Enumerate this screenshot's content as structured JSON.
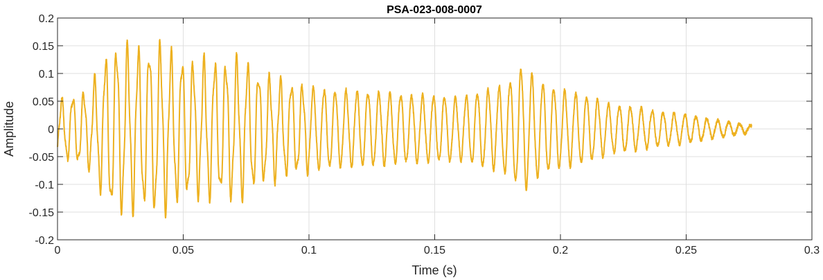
{
  "chart_data": {
    "type": "line",
    "title": "PSA-023-008-0007",
    "xlabel": "Time (s)",
    "ylabel": "Amplitude",
    "xlim": [
      0,
      0.3
    ],
    "ylim": [
      -0.2,
      0.2
    ],
    "grid": true,
    "x_ticks": [
      0,
      0.05,
      0.1,
      0.15,
      0.2,
      0.25,
      0.3
    ],
    "x_tick_labels": [
      "0",
      "0.05",
      "0.1",
      "0.15",
      "0.2",
      "0.25",
      "0.3"
    ],
    "y_ticks": [
      0.2,
      0.15,
      0.1,
      0.05,
      0,
      -0.05,
      -0.1,
      -0.15,
      -0.2
    ],
    "y_tick_labels": [
      "0.2",
      "0.15",
      "0.1",
      "0.05",
      "0",
      "-0.05",
      "-0.1",
      "-0.15",
      "-0.2"
    ],
    "series": [
      {
        "color": "#EDB120",
        "x_range": [
          0,
          0.276
        ],
        "envelope_t": [
          0,
          0.003,
          0.012,
          0.018,
          0.021,
          0.025,
          0.03,
          0.035,
          0.04,
          0.045,
          0.05,
          0.055,
          0.06,
          0.065,
          0.07,
          0.075,
          0.08,
          0.09,
          0.1,
          0.11,
          0.12,
          0.13,
          0.14,
          0.15,
          0.16,
          0.17,
          0.175,
          0.18,
          0.185,
          0.19,
          0.195,
          0.2,
          0.21,
          0.22,
          0.23,
          0.24,
          0.25,
          0.26,
          0.27,
          0.276
        ],
        "envelope_a": [
          0.055,
          0.06,
          0.075,
          0.13,
          0.16,
          0.165,
          0.16,
          0.155,
          0.17,
          0.15,
          0.14,
          0.13,
          0.14,
          0.13,
          0.14,
          0.13,
          0.11,
          0.095,
          0.085,
          0.08,
          0.078,
          0.075,
          0.07,
          0.068,
          0.065,
          0.08,
          0.085,
          0.1,
          0.13,
          0.105,
          0.09,
          0.08,
          0.07,
          0.05,
          0.045,
          0.035,
          0.03,
          0.02,
          0.012,
          0.007
        ],
        "freq_hz": 230
      }
    ]
  }
}
